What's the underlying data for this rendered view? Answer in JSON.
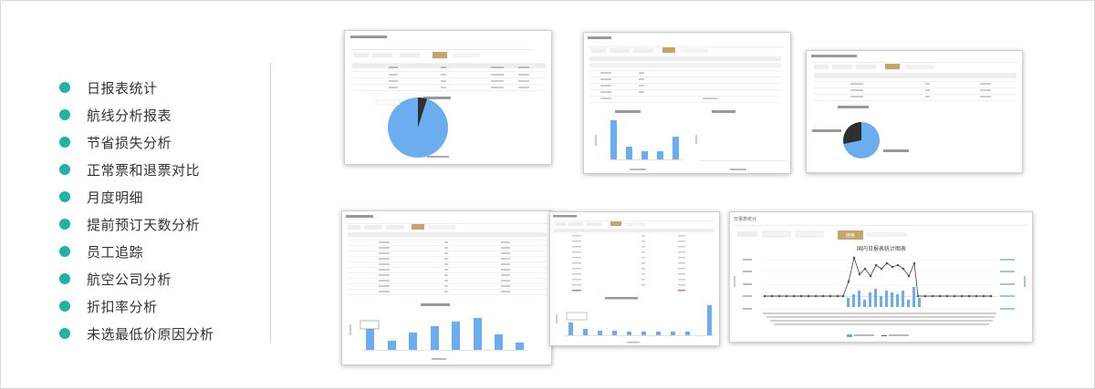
{
  "menu": {
    "items": [
      {
        "label": "日报表统计"
      },
      {
        "label": "航线分析报表"
      },
      {
        "label": "节省损失分析"
      },
      {
        "label": "正常票和退票对比"
      },
      {
        "label": "月度明细"
      },
      {
        "label": "提前预订天数分析"
      },
      {
        "label": "员工追踪"
      },
      {
        "label": "航空公司分析"
      },
      {
        "label": "折扣率分析"
      },
      {
        "label": "未选最低价原因分析"
      }
    ]
  },
  "thumbnails": {
    "daily": {
      "chart_title": "日报表统计",
      "button": "搜索",
      "plot_title": "国内日报表统计图表"
    }
  },
  "colors": {
    "accent_teal": "#1fb3a4",
    "button_tan": "#c9a46a",
    "bar_blue": "#6aaef0",
    "pie_dark": "#2f2f2f",
    "line_dark": "#555555"
  }
}
